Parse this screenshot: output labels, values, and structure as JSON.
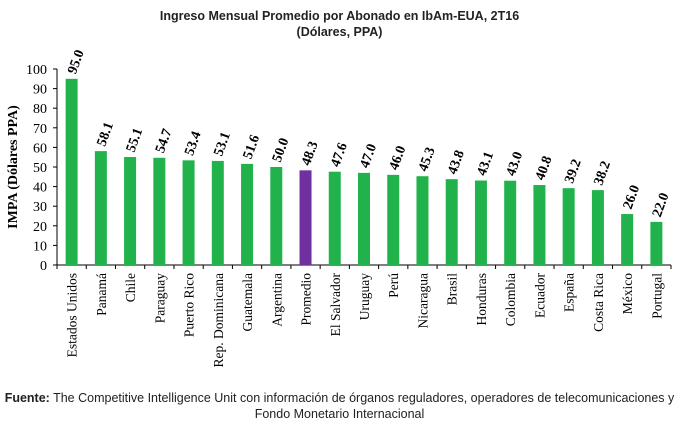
{
  "title_line1": "Ingreso Mensual Promedio por Abonado en IbAm-EUA, 2T16",
  "title_line2": "(Dólares, PPA)",
  "source_label": "Fuente:",
  "source_text": " The Competitive Intelligence Unit con información de órganos reguladores, operadores de telecomunicaciones y Fondo Monetario Internacional",
  "colors": {
    "bar": "#22b24c",
    "highlight": "#7030a0",
    "axis": "#000000"
  },
  "chart_data": {
    "type": "bar",
    "title": "Ingreso Mensual Promedio por Abonado en IbAm-EUA, 2T16",
    "subtitle": "(Dólares, PPA)",
    "xlabel": "",
    "ylabel": "IMPA (Dólares PPA)",
    "ylim": [
      0,
      100
    ],
    "yticks": [
      0,
      10,
      20,
      30,
      40,
      50,
      60,
      70,
      80,
      90,
      100
    ],
    "grid": false,
    "legend": "none",
    "highlight_category": "Promedio",
    "categories": [
      "Estados Unidos",
      "Panamá",
      "Chile",
      "Paraguay",
      "Puerto Rico",
      "Rep. Dominicana",
      "Guatemala",
      "Argentina",
      "Promedio",
      "El Salvador",
      "Uruguay",
      "Perú",
      "Nicaragua",
      "Brasil",
      "Honduras",
      "Colombia",
      "Ecuador",
      "España",
      "Costa Rica",
      "México",
      "Portugal"
    ],
    "values": [
      95.0,
      58.1,
      55.1,
      54.7,
      53.4,
      53.1,
      51.6,
      50.0,
      48.3,
      47.6,
      47.0,
      46.0,
      45.3,
      43.8,
      43.1,
      43.0,
      40.8,
      39.2,
      38.2,
      26.0,
      22.0
    ],
    "labels": [
      "95.0",
      "58.1",
      "55.1",
      "54.7",
      "53.4",
      "53.1",
      "51.6",
      "50.0",
      "48.3",
      "47.6",
      "47.0",
      "46.0",
      "45.3",
      "43.8",
      "43.1",
      "43.0",
      "40.8",
      "39.2",
      "38.2",
      "26.0",
      "22.0"
    ]
  }
}
